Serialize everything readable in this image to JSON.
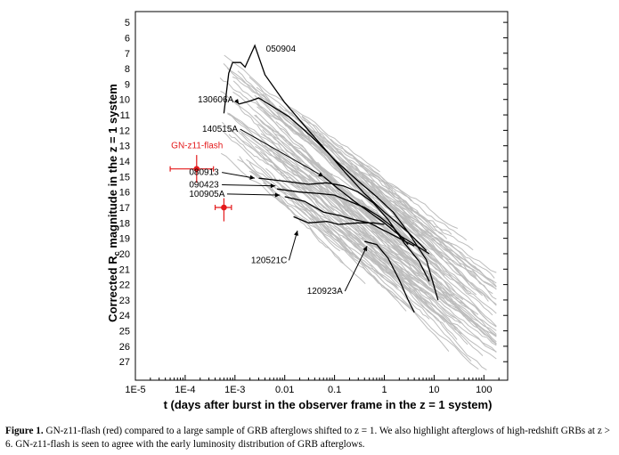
{
  "chart_data": {
    "type": "line",
    "xlabel": "t (days after burst in the observer frame in the z = 1 system)",
    "ylabel": "Corrected R_c magnitude in the z = 1 system",
    "x_scale": "log",
    "xlim": [
      1e-05,
      300
    ],
    "ylim": [
      4.3,
      28.2
    ],
    "y_inverted": true,
    "x_ticks": [
      {
        "value": 1e-05,
        "label": "1E-5"
      },
      {
        "value": 0.0001,
        "label": "1E-4"
      },
      {
        "value": 0.001,
        "label": "1E-3"
      },
      {
        "value": 0.01,
        "label": "0.01"
      },
      {
        "value": 0.1,
        "label": "0.1"
      },
      {
        "value": 1,
        "label": "1"
      },
      {
        "value": 10,
        "label": "10"
      },
      {
        "value": 100,
        "label": "100"
      }
    ],
    "y_ticks": [
      5,
      6,
      7,
      8,
      9,
      10,
      11,
      12,
      13,
      14,
      15,
      16,
      17,
      18,
      19,
      20,
      21,
      22,
      23,
      24,
      25,
      26,
      27
    ],
    "highlighted_series": [
      {
        "name": "050904",
        "points": [
          [
            0.0006,
            10.9
          ],
          [
            0.00075,
            8.3
          ],
          [
            0.0009,
            7.6
          ],
          [
            0.0013,
            7.6
          ],
          [
            0.0016,
            7.9
          ],
          [
            0.0025,
            6.5
          ],
          [
            0.004,
            8.4
          ],
          [
            0.01,
            10.2
          ],
          [
            0.03,
            12.0
          ],
          [
            0.06,
            13.1
          ],
          [
            0.15,
            14.6
          ],
          [
            0.4,
            16.1
          ],
          [
            1,
            17.3
          ],
          [
            3,
            18.6
          ],
          [
            7,
            19.8
          ]
        ],
        "label_at": [
          0.0042,
          6.9
        ]
      },
      {
        "name": "130606A",
        "points": [
          [
            0.0012,
            10.3
          ],
          [
            0.002,
            10.1
          ],
          [
            0.003,
            9.9
          ],
          [
            0.006,
            10.5
          ],
          [
            0.012,
            11.1
          ],
          [
            0.025,
            12.0
          ],
          [
            0.05,
            12.9
          ],
          [
            0.1,
            13.9
          ],
          [
            0.3,
            15.3
          ],
          [
            0.7,
            16.3
          ],
          [
            1.5,
            17.3
          ],
          [
            3,
            18.6
          ],
          [
            7,
            20.4
          ],
          [
            12,
            23.0
          ]
        ],
        "label_at": [
          0.00018,
          10.2
        ],
        "arrow_to": [
          0.0012,
          10.3
        ]
      },
      {
        "name": "140515A",
        "points": [
          [
            0.06,
            15.0
          ],
          [
            0.12,
            15.8
          ],
          [
            0.25,
            16.6
          ],
          [
            0.5,
            17.3
          ],
          [
            1,
            18.0
          ],
          [
            2,
            18.8
          ],
          [
            4,
            19.4
          ],
          [
            8,
            20.0
          ]
        ],
        "label_at": [
          0.00022,
          12.1
        ],
        "arrow_to": [
          0.06,
          15.0
        ]
      },
      {
        "name": "080913",
        "points": [
          [
            0.003,
            15.1
          ],
          [
            0.01,
            15.3
          ],
          [
            0.03,
            15.5
          ],
          [
            0.07,
            15.4
          ],
          [
            0.15,
            15.6
          ],
          [
            0.3,
            16.0
          ],
          [
            0.6,
            16.7
          ],
          [
            1.2,
            17.8
          ],
          [
            2.5,
            19.3
          ],
          [
            5,
            20.5
          ],
          [
            8,
            21.8
          ]
        ],
        "label_at": [
          0.00012,
          14.9
        ],
        "arrow_to": [
          0.0025,
          15.1
        ]
      },
      {
        "name": "090423",
        "points": [
          [
            0.007,
            15.8
          ],
          [
            0.02,
            16.0
          ],
          [
            0.05,
            16.1
          ],
          [
            0.1,
            16.2
          ],
          [
            0.2,
            16.6
          ],
          [
            0.4,
            17.0
          ],
          [
            0.8,
            17.6
          ],
          [
            1.5,
            18.3
          ],
          [
            3,
            19.4
          ]
        ],
        "label_at": [
          0.00012,
          15.7
        ],
        "arrow_to": [
          0.0065,
          15.6
        ]
      },
      {
        "name": "100905A",
        "points": [
          [
            0.01,
            16.3
          ],
          [
            0.025,
            16.6
          ],
          [
            0.06,
            17.3
          ],
          [
            0.12,
            17.5
          ],
          [
            0.25,
            17.8
          ],
          [
            0.5,
            18.0
          ],
          [
            1,
            18.5
          ],
          [
            2,
            19.0
          ],
          [
            4,
            19.5
          ]
        ],
        "label_at": [
          0.00012,
          16.3
        ],
        "arrow_to": [
          0.008,
          16.2
        ]
      },
      {
        "name": "120521C",
        "points": [
          [
            0.015,
            17.6
          ],
          [
            0.03,
            18.0
          ],
          [
            0.07,
            17.9
          ],
          [
            0.12,
            18.1
          ],
          [
            0.3,
            18.0
          ],
          [
            0.6,
            18.0
          ],
          [
            1,
            18.1
          ]
        ],
        "label_at": [
          0.0021,
          20.6
        ],
        "arrow_to": [
          0.018,
          18.5
        ]
      },
      {
        "name": "120923A",
        "points": [
          [
            0.4,
            19.2
          ],
          [
            0.7,
            19.4
          ],
          [
            1.2,
            20.3
          ],
          [
            2,
            21.7
          ],
          [
            3,
            23.0
          ],
          [
            4,
            23.8
          ]
        ],
        "label_at": [
          0.028,
          22.6
        ],
        "arrow_to": [
          0.45,
          19.5
        ]
      }
    ],
    "gn_z11_flash": {
      "name": "GN-z11-flash",
      "color": "#e41a1c",
      "points": [
        {
          "x": 0.00017,
          "y": 14.5,
          "x_err": [
            5e-05,
            0.00037
          ],
          "y_err": [
            13.6,
            15.4
          ]
        },
        {
          "x": 0.0006,
          "y": 17.0,
          "x_err": [
            0.0004,
            0.00085
          ],
          "y_err": [
            16.4,
            17.9
          ]
        }
      ],
      "label_at": [
        0.00018,
        13.4
      ]
    },
    "background_sample_color": "#bdbdbd",
    "highlight_color": "#000000"
  },
  "caption": {
    "lead": "Figure 1.",
    "text": " GN-z11-flash (red) compared to a large sample of GRB afterglows shifted to z = 1. We also highlight afterglows of high-redshift GRBs at z > 6. GN-z11-flash is seen to agree with the early luminosity distribution of GRB afterglows."
  }
}
